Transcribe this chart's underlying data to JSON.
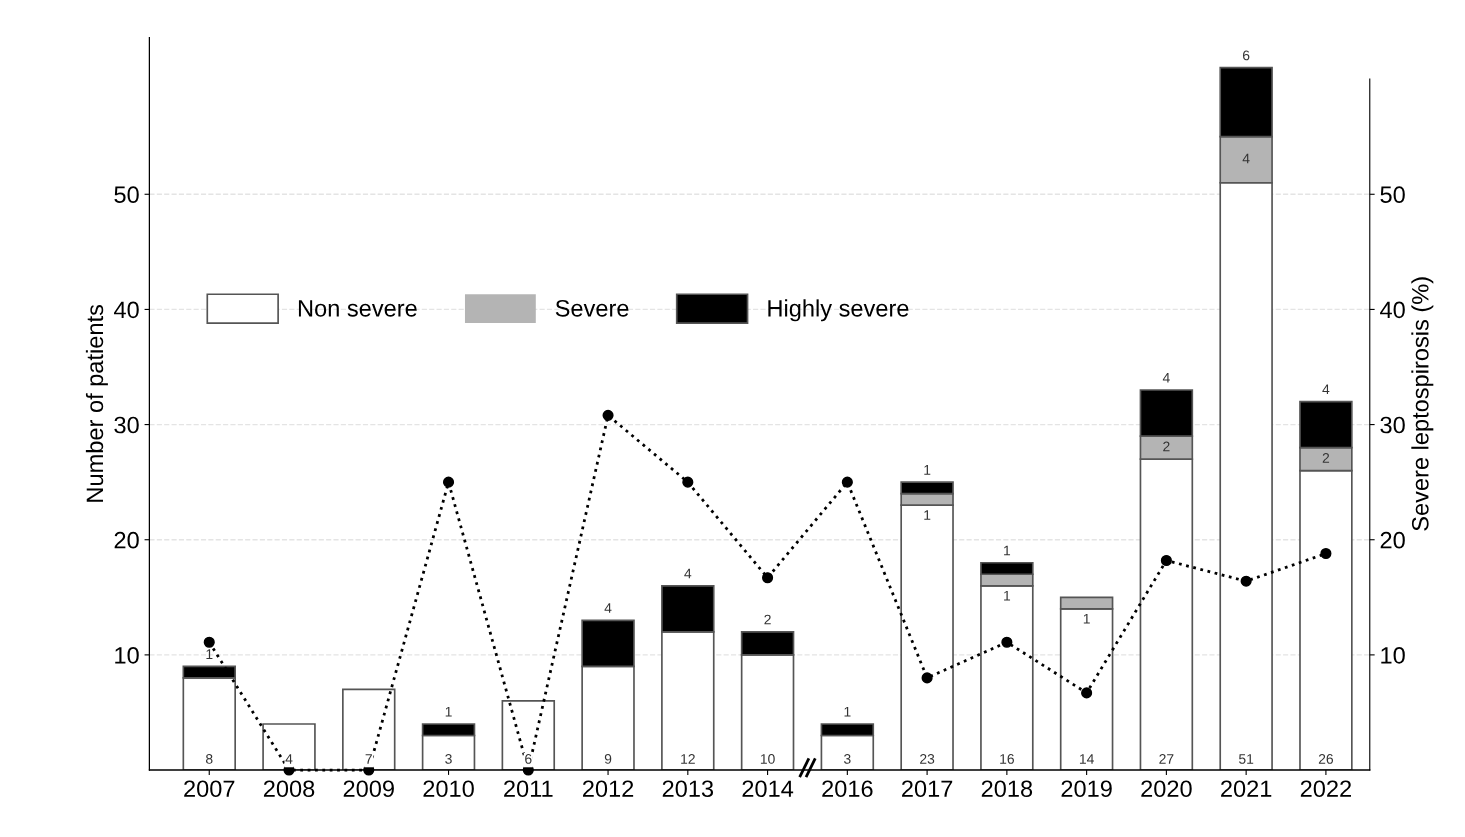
{
  "chart_data": {
    "type": "bar",
    "stacked": true,
    "ylabel": "Number of patients",
    "y2label": "Severe leptospirosis (%)",
    "categories": [
      "2007",
      "2008",
      "2009",
      "2010",
      "2011",
      "2012",
      "2013",
      "2014",
      "2016",
      "2017",
      "2018",
      "2019",
      "2020",
      "2021",
      "2022"
    ],
    "series": [
      {
        "name": "Non severe",
        "color": "#ffffff",
        "values": [
          8,
          4,
          7,
          3,
          6,
          9,
          12,
          10,
          3,
          23,
          16,
          14,
          27,
          51,
          26
        ],
        "value_labels": [
          "8",
          "4",
          "7",
          "3",
          "6",
          "9",
          "12",
          "10",
          "3",
          "23",
          "16",
          "14",
          "27",
          "51",
          "26"
        ]
      },
      {
        "name": "Severe",
        "color": "#b4b4b4",
        "values": [
          0,
          0,
          0,
          0,
          0,
          0,
          0,
          0,
          0,
          1,
          1,
          1,
          2,
          4,
          2
        ],
        "value_labels": [
          null,
          null,
          null,
          null,
          null,
          null,
          null,
          null,
          null,
          "1",
          "1",
          "1",
          "2",
          "4",
          "2"
        ]
      },
      {
        "name": "Highly severe",
        "color": "#000000",
        "values": [
          1,
          0,
          0,
          1,
          0,
          4,
          4,
          2,
          1,
          1,
          1,
          0,
          4,
          6,
          4
        ],
        "value_labels": [
          "1",
          null,
          null,
          "1",
          null,
          "4",
          "4",
          "2",
          "1",
          "1",
          "1",
          null,
          "4",
          "6",
          "4"
        ]
      },
      {
        "type": "line",
        "axis": "y2",
        "color": "#000000",
        "marker": "circle",
        "line_style": "dotted",
        "values": [
          11.1,
          0,
          0,
          25,
          0,
          30.8,
          25,
          16.7,
          25,
          8,
          11.1,
          6.7,
          18.2,
          16.4,
          18.8
        ]
      }
    ],
    "ylim": [
      0,
      63.6
    ],
    "yticks": [
      10,
      20,
      30,
      40,
      50
    ],
    "y2lim": [
      0,
      63.6
    ],
    "y2ticks": [
      10,
      20,
      30,
      40,
      50
    ],
    "grid": "y",
    "legend": "left"
  }
}
